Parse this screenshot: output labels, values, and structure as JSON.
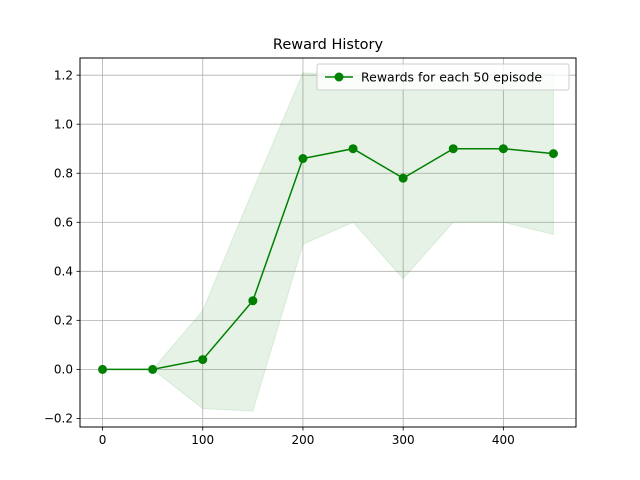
{
  "chart_data": {
    "type": "line",
    "title": "Reward History",
    "xlabel": "",
    "ylabel": "",
    "xlim": [
      -22.5,
      472.5
    ],
    "ylim": [
      -0.235,
      1.27
    ],
    "x_ticks": [
      0,
      100,
      200,
      300,
      400
    ],
    "y_ticks": [
      -0.2,
      0.0,
      0.2,
      0.4,
      0.6,
      0.8,
      1.0,
      1.2
    ],
    "y_tick_labels": [
      "−0.2",
      "0.0",
      "0.2",
      "0.4",
      "0.6",
      "0.8",
      "1.0",
      "1.2"
    ],
    "grid": true,
    "legend_position": "top-right",
    "series": [
      {
        "name": "Rewards for each 50 episode",
        "color": "#008000",
        "marker": "circle",
        "x": [
          0,
          50,
          100,
          150,
          200,
          250,
          300,
          350,
          400,
          450
        ],
        "values": [
          0.0,
          0.0,
          0.04,
          0.28,
          0.86,
          0.9,
          0.78,
          0.9,
          0.9,
          0.88
        ]
      }
    ],
    "band": {
      "color": "#008000",
      "opacity": 0.1,
      "x": [
        0,
        50,
        100,
        150,
        200,
        250,
        300,
        350,
        400,
        450
      ],
      "lower": [
        0.0,
        0.0,
        -0.16,
        -0.17,
        0.51,
        0.6,
        0.37,
        0.6,
        0.6,
        0.55
      ],
      "upper": [
        0.0,
        0.0,
        0.24,
        0.73,
        1.21,
        1.2,
        1.19,
        1.2,
        1.2,
        1.21
      ]
    }
  }
}
